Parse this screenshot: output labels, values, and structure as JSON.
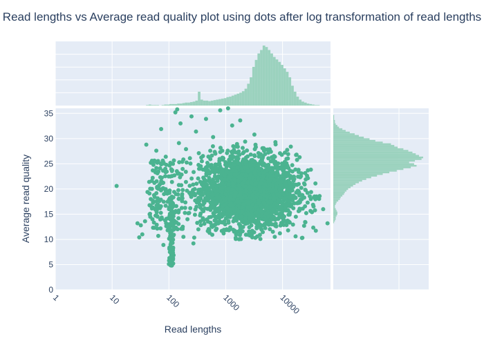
{
  "chart_data": {
    "type": "scatter",
    "title": "Read lengths vs Average read quality plot using dots after log transformation of read lengths",
    "xlabel": "Read lengths",
    "ylabel": "Average read quality",
    "x_scale": "log10",
    "xlim": [
      1,
      70000
    ],
    "ylim": [
      0,
      36
    ],
    "x_ticks": [
      "1",
      "10",
      "100",
      "1000",
      "10000"
    ],
    "y_ticks": [
      "0",
      "5",
      "10",
      "15",
      "20",
      "25",
      "30",
      "35"
    ],
    "grid": true,
    "color": "#4bb390",
    "hist_color": "#9bd2be",
    "plot_bg": "#e5ecf6",
    "points": [
      {
        "x": 12,
        "y": 20.6
      },
      {
        "x": 28,
        "y": 13.2
      },
      {
        "x": 30,
        "y": 10.4
      },
      {
        "x": 32,
        "y": 12.8
      },
      {
        "x": 34,
        "y": 11.0
      },
      {
        "x": 38,
        "y": 13.6
      },
      {
        "x": 40,
        "y": 28.8
      },
      {
        "x": 42,
        "y": 19.4
      },
      {
        "x": 45,
        "y": 21.4
      },
      {
        "x": 47,
        "y": 14.5
      },
      {
        "x": 48,
        "y": 18.0
      },
      {
        "x": 50,
        "y": 25.4
      },
      {
        "x": 52,
        "y": 16.3
      },
      {
        "x": 55,
        "y": 12.3
      },
      {
        "x": 58,
        "y": 23.3
      },
      {
        "x": 60,
        "y": 27.6
      },
      {
        "x": 62,
        "y": 20.2
      },
      {
        "x": 65,
        "y": 10.7
      },
      {
        "x": 68,
        "y": 17.6
      },
      {
        "x": 70,
        "y": 24.1
      },
      {
        "x": 73,
        "y": 31.9
      },
      {
        "x": 75,
        "y": 14.1
      },
      {
        "x": 78,
        "y": 21.2
      },
      {
        "x": 80,
        "y": 8.9
      },
      {
        "x": 82,
        "y": 19.0
      },
      {
        "x": 88,
        "y": 26.4
      },
      {
        "x": 95,
        "y": 11.8
      },
      {
        "x": 100,
        "y": 5.1
      },
      {
        "x": 102,
        "y": 6.3
      },
      {
        "x": 104,
        "y": 7.5
      },
      {
        "x": 106,
        "y": 5.8
      },
      {
        "x": 108,
        "y": 8.4
      },
      {
        "x": 110,
        "y": 6.9
      },
      {
        "x": 112,
        "y": 4.8
      },
      {
        "x": 114,
        "y": 7.1
      },
      {
        "x": 116,
        "y": 9.3
      },
      {
        "x": 118,
        "y": 6.0
      },
      {
        "x": 120,
        "y": 16.6
      },
      {
        "x": 125,
        "y": 22.7
      },
      {
        "x": 130,
        "y": 35.2
      },
      {
        "x": 135,
        "y": 13.4
      },
      {
        "x": 140,
        "y": 35.8
      },
      {
        "x": 150,
        "y": 29.1
      },
      {
        "x": 160,
        "y": 33.0
      },
      {
        "x": 175,
        "y": 19.8
      },
      {
        "x": 180,
        "y": 10.5
      },
      {
        "x": 200,
        "y": 27.9
      },
      {
        "x": 220,
        "y": 15.2
      },
      {
        "x": 250,
        "y": 34.4
      },
      {
        "x": 270,
        "y": 9.2
      },
      {
        "x": 300,
        "y": 31.4
      },
      {
        "x": 330,
        "y": 12.0
      },
      {
        "x": 380,
        "y": 25.5
      },
      {
        "x": 450,
        "y": 33.9
      },
      {
        "x": 520,
        "y": 11.3
      },
      {
        "x": 600,
        "y": 30.3
      },
      {
        "x": 700,
        "y": 22.0
      },
      {
        "x": 800,
        "y": 35.6
      },
      {
        "x": 900,
        "y": 14.8
      },
      {
        "x": 1000,
        "y": 19.0
      },
      {
        "x": 1100,
        "y": 36.0
      },
      {
        "x": 1300,
        "y": 32.6
      },
      {
        "x": 1500,
        "y": 10.3
      },
      {
        "x": 1800,
        "y": 33.6
      },
      {
        "x": 2200,
        "y": 29.4
      },
      {
        "x": 2600,
        "y": 12.4
      },
      {
        "x": 3200,
        "y": 30.8
      },
      {
        "x": 4000,
        "y": 10.9
      },
      {
        "x": 5000,
        "y": 27.8
      },
      {
        "x": 6000,
        "y": 13.0
      },
      {
        "x": 7500,
        "y": 29.3
      },
      {
        "x": 9000,
        "y": 11.2
      },
      {
        "x": 11000,
        "y": 27.2
      },
      {
        "x": 14000,
        "y": 28.4
      },
      {
        "x": 17000,
        "y": 10.6
      },
      {
        "x": 20000,
        "y": 26.3
      },
      {
        "x": 24000,
        "y": 12.7
      },
      {
        "x": 28000,
        "y": 23.7
      },
      {
        "x": 33000,
        "y": 15.4
      },
      {
        "x": 38000,
        "y": 21.1
      },
      {
        "x": 45000,
        "y": 18.6
      },
      {
        "x": 52000,
        "y": 16.0
      },
      {
        "x": 62000,
        "y": 13.2
      }
    ],
    "dense_cluster": {
      "x_range": [
        180,
        50000
      ],
      "y_range": [
        10,
        29
      ],
      "center": {
        "x": 2500,
        "y": 19.5
      }
    },
    "top_histogram_counts": [
      0,
      0,
      0,
      0,
      0,
      0,
      0,
      0,
      0,
      0,
      0,
      0,
      0,
      0,
      0,
      0,
      0,
      0,
      0,
      0,
      0,
      0,
      0,
      0,
      0,
      0,
      0,
      0,
      0,
      0,
      0,
      0,
      0,
      0,
      0,
      1,
      2,
      1,
      1,
      1,
      0,
      1,
      2,
      2,
      3,
      3,
      3,
      4,
      4,
      5,
      6,
      6,
      7,
      8,
      10,
      28,
      12,
      10,
      10,
      9,
      10,
      11,
      12,
      13,
      14,
      15,
      17,
      18,
      20,
      22,
      24,
      26,
      29,
      34,
      44,
      57,
      78,
      92,
      105,
      112,
      121,
      118,
      112,
      105,
      98,
      93,
      88,
      82,
      75,
      68,
      57,
      40,
      28,
      18,
      12,
      8,
      6,
      4,
      3,
      2,
      1,
      1,
      0
    ],
    "top_histogram_range": [
      0,
      4.7
    ],
    "right_histogram_counts": [
      0,
      0,
      0,
      0,
      0,
      0,
      0,
      0,
      0,
      0,
      0,
      0,
      0,
      0,
      0,
      0,
      0,
      0,
      0,
      0,
      0,
      0,
      0,
      0,
      0,
      0,
      0,
      0,
      0,
      0,
      0,
      0,
      0,
      0,
      0,
      0,
      0,
      0,
      0,
      0,
      1,
      2,
      3,
      3,
      4,
      5,
      5,
      4,
      3,
      2,
      2,
      3,
      4,
      6,
      8,
      9,
      11,
      13,
      14,
      16,
      18,
      21,
      24,
      27,
      31,
      35,
      40,
      46,
      53,
      60,
      68,
      77,
      85,
      94,
      101,
      98,
      92,
      99,
      107,
      109,
      104,
      100,
      96,
      91,
      85,
      78,
      74,
      70,
      60,
      51,
      44,
      37,
      31,
      26,
      20,
      15,
      11,
      7,
      5,
      3,
      2,
      2,
      1,
      1,
      1,
      0,
      0,
      0,
      0
    ],
    "right_histogram_range": [
      0,
      36
    ]
  }
}
